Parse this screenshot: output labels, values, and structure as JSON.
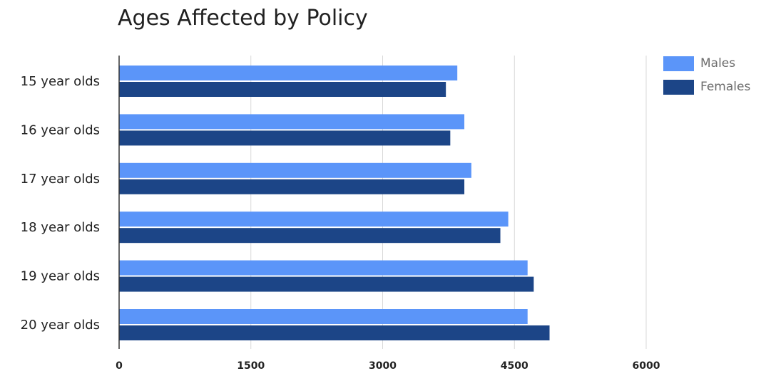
{
  "chart_data": {
    "type": "bar",
    "orientation": "horizontal",
    "title": "Ages Affected by Policy",
    "xlabel": "",
    "ylabel": "",
    "categories": [
      "15 year olds",
      "16 year olds",
      "17 year olds",
      "18 year olds",
      "19 year olds",
      "20 year olds"
    ],
    "series": [
      {
        "name": "Males",
        "color": "#5b95f9",
        "values": [
          3850,
          3930,
          4010,
          4430,
          4650,
          4650
        ]
      },
      {
        "name": "Females",
        "color": "#1c4587",
        "values": [
          3720,
          3770,
          3930,
          4340,
          4720,
          4900
        ]
      }
    ],
    "xlim": [
      0,
      7200
    ],
    "xticks": [
      0,
      1500,
      3000,
      4500,
      6000
    ],
    "xtick_labels": [
      "0",
      "1500",
      "3000",
      "4500",
      "6000"
    ],
    "grid": true,
    "legend_position": "right"
  }
}
